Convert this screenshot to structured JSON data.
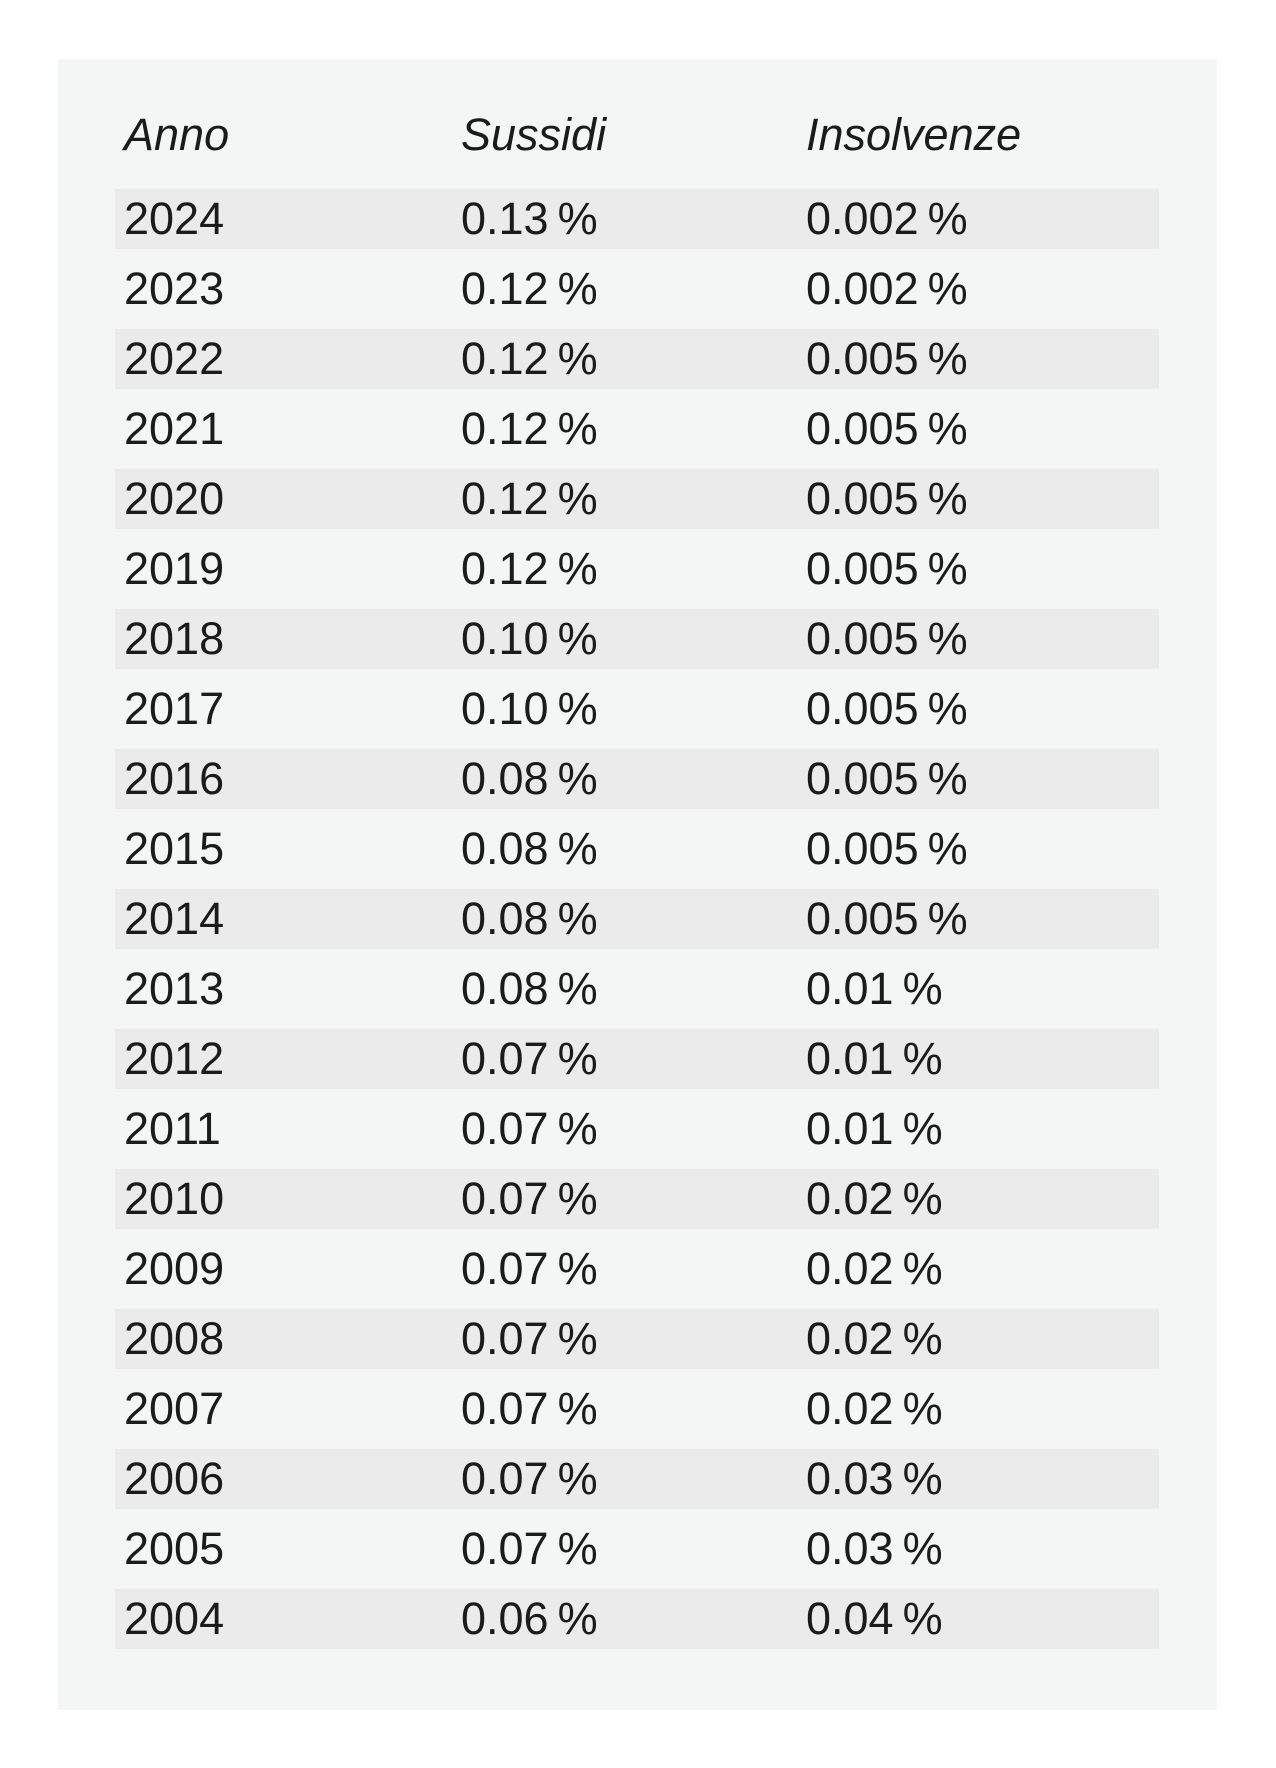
{
  "colors": {
    "page_background": "#ffffff",
    "card_background": "#f4f5f5",
    "stripe_background": "#ebebeb",
    "text": "#1b1b1b"
  },
  "chart_data": {
    "type": "table",
    "columns": [
      "Anno",
      "Sussidi",
      "Insolvenze"
    ],
    "rows": [
      [
        "2024",
        "0.13 %",
        "0.002 %"
      ],
      [
        "2023",
        "0.12 %",
        "0.002 %"
      ],
      [
        "2022",
        "0.12 %",
        "0.005 %"
      ],
      [
        "2021",
        "0.12 %",
        "0.005 %"
      ],
      [
        "2020",
        "0.12 %",
        "0.005 %"
      ],
      [
        "2019",
        "0.12 %",
        "0.005 %"
      ],
      [
        "2018",
        "0.10 %",
        "0.005 %"
      ],
      [
        "2017",
        "0.10 %",
        "0.005 %"
      ],
      [
        "2016",
        "0.08 %",
        "0.005 %"
      ],
      [
        "2015",
        "0.08 %",
        "0.005 %"
      ],
      [
        "2014",
        "0.08 %",
        "0.005 %"
      ],
      [
        "2013",
        "0.08 %",
        "0.01 %"
      ],
      [
        "2012",
        "0.07 %",
        "0.01 %"
      ],
      [
        "2011",
        "0.07 %",
        "0.01 %"
      ],
      [
        "2010",
        "0.07 %",
        "0.02 %"
      ],
      [
        "2009",
        "0.07 %",
        "0.02 %"
      ],
      [
        "2008",
        "0.07 %",
        "0.02 %"
      ],
      [
        "2007",
        "0.07 %",
        "0.02 %"
      ],
      [
        "2006",
        "0.07 %",
        "0.03 %"
      ],
      [
        "2005",
        "0.07 %",
        "0.03 %"
      ],
      [
        "2004",
        "0.06 %",
        "0.04 %"
      ]
    ],
    "categories": [
      2024,
      2023,
      2022,
      2021,
      2020,
      2019,
      2018,
      2017,
      2016,
      2015,
      2014,
      2013,
      2012,
      2011,
      2010,
      2009,
      2008,
      2007,
      2006,
      2005,
      2004
    ],
    "series": [
      {
        "name": "Sussidi",
        "unit": "%",
        "values": [
          0.13,
          0.12,
          0.12,
          0.12,
          0.12,
          0.12,
          0.1,
          0.1,
          0.08,
          0.08,
          0.08,
          0.08,
          0.07,
          0.07,
          0.07,
          0.07,
          0.07,
          0.07,
          0.07,
          0.07,
          0.06
        ]
      },
      {
        "name": "Insolvenze",
        "unit": "%",
        "values": [
          0.002,
          0.002,
          0.005,
          0.005,
          0.005,
          0.005,
          0.005,
          0.005,
          0.005,
          0.005,
          0.005,
          0.01,
          0.01,
          0.01,
          0.02,
          0.02,
          0.02,
          0.02,
          0.03,
          0.03,
          0.04
        ]
      }
    ],
    "title": "",
    "layout": {
      "striped_rows": "odd (first row striped)",
      "header_style": "italic",
      "alignment": "left"
    }
  }
}
